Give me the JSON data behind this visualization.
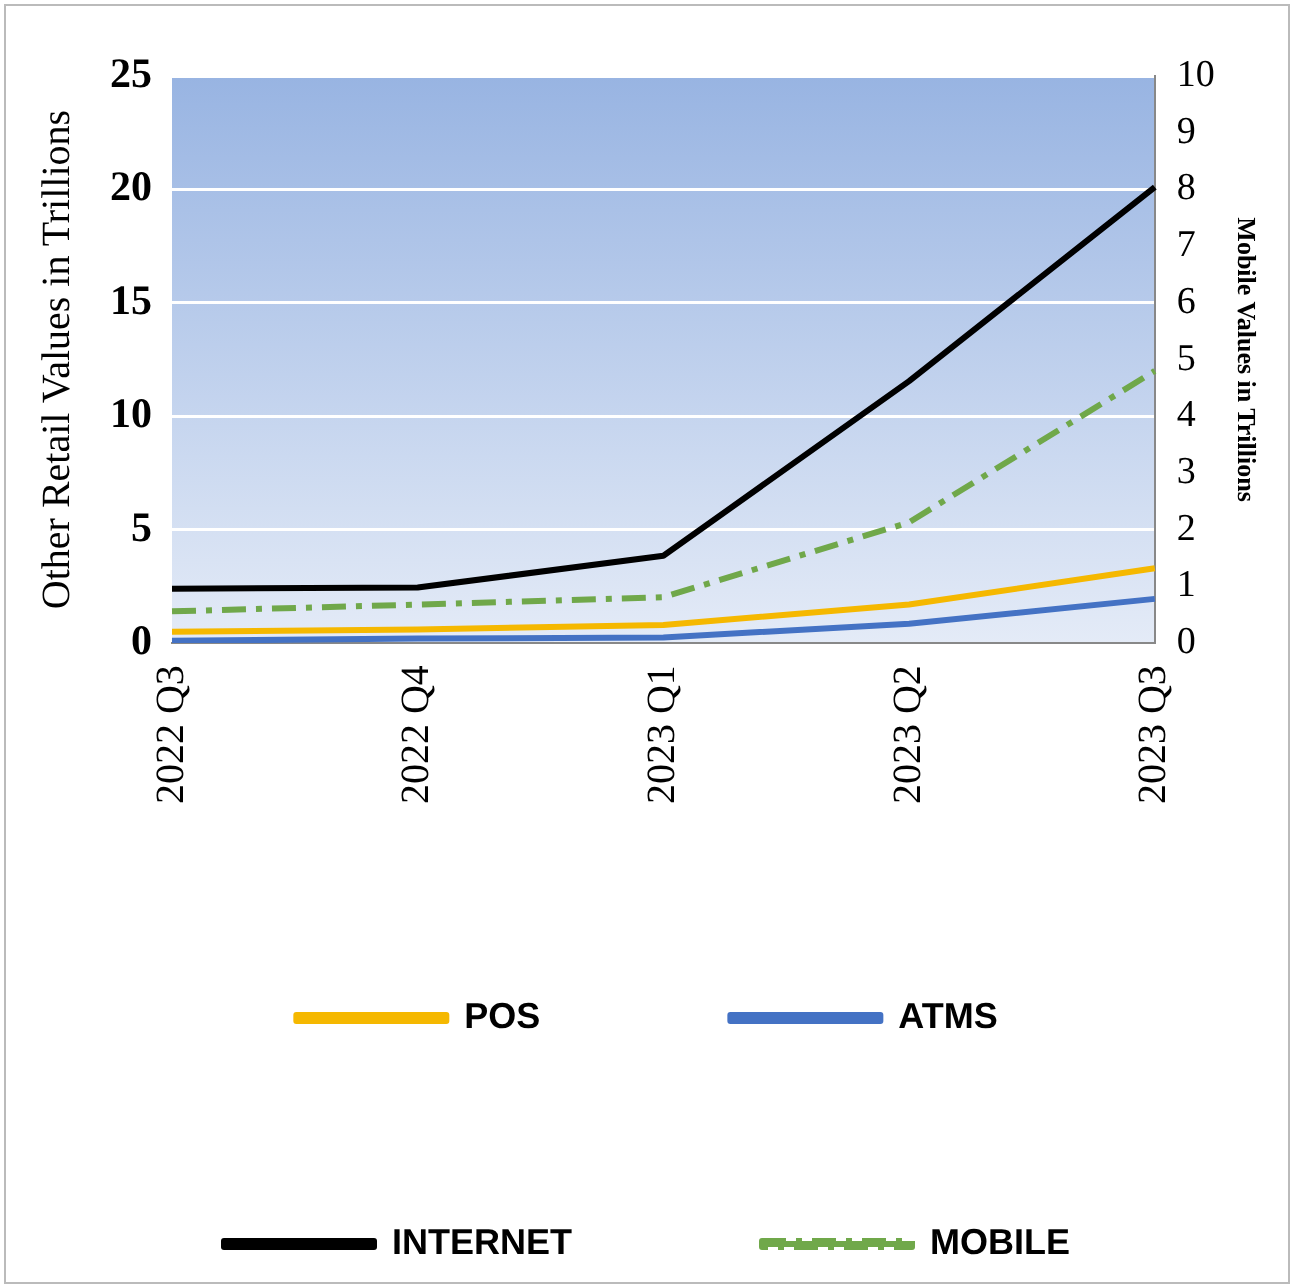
{
  "chart_data": {
    "type": "line",
    "categories": [
      "2022 Q3",
      "2022 Q4",
      "2023 Q1",
      "2023 Q2",
      "2023 Q3"
    ],
    "ylabel": "Other Retail Values in Trillions",
    "y2label": "Mobile Values in Trillions",
    "ylim": [
      0,
      25
    ],
    "yticks": [
      0,
      5,
      10,
      15,
      20,
      25
    ],
    "y2lim": [
      0,
      10
    ],
    "y2ticks": [
      0,
      1,
      2,
      3,
      4,
      5,
      6,
      7,
      8,
      9,
      10
    ],
    "grid": "y",
    "legend": "bottom",
    "marker": "none",
    "series": [
      {
        "name": "POS",
        "color": "#f5b800",
        "values": [
          0.5,
          0.6,
          0.8,
          1.7,
          3.3
        ]
      },
      {
        "name": "ATMS",
        "color": "#4472c4",
        "values": [
          0.1,
          0.2,
          0.25,
          0.85,
          1.95
        ]
      },
      {
        "name": "INTERNET",
        "color": "#000000",
        "values": [
          2.4,
          2.45,
          3.85,
          11.55,
          20.1
        ]
      },
      {
        "name": "MOBILE",
        "color": "#70a84a",
        "values": [
          0.56,
          0.68,
          0.81,
          2.13,
          4.8
        ],
        "axis": "y2",
        "line_style": "dashed"
      }
    ]
  }
}
